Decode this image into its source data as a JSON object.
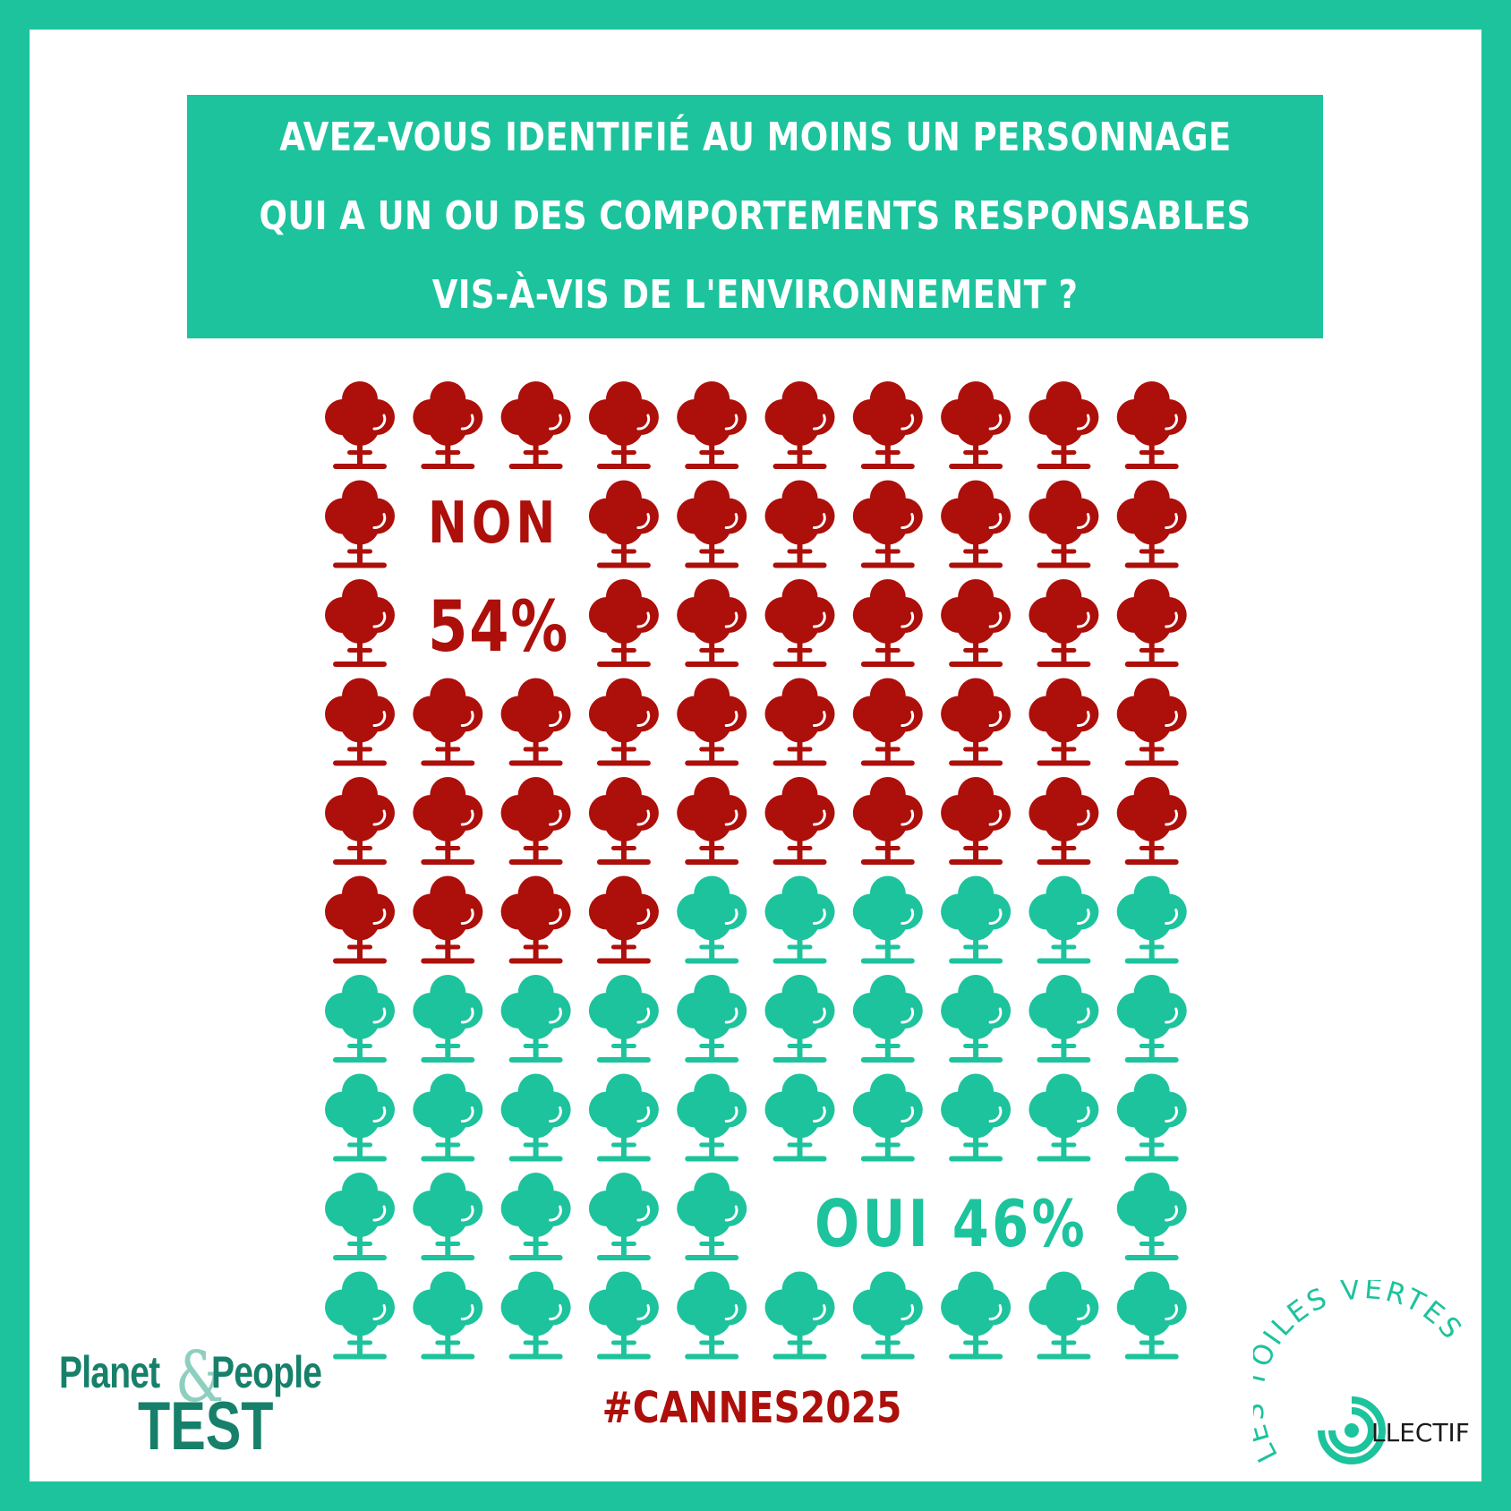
{
  "question": {
    "lines": [
      "AVEZ-VOUS IDENTIFIÉ AU MOINS UN PERSONNAGE",
      "QUI A UN OU DES COMPORTEMENTS RESPONSABLES",
      "VIS-À-VIS DE L'ENVIRONNEMENT ?"
    ]
  },
  "chart_data": {
    "type": "pictogram",
    "icon": "tree-icon",
    "rows": 10,
    "columns": 10,
    "total": 100,
    "series": [
      {
        "name": "NON",
        "value": 54,
        "label": "54%",
        "color": "#ad0f0a"
      },
      {
        "name": "OUI",
        "value": 46,
        "label": "46%",
        "color": "#1dc39c"
      }
    ],
    "title": "AVEZ-VOUS IDENTIFIÉ AU MOINS UN PERSONNAGE QUI A UN OU DES COMPORTEMENTS RESPONSABLES VIS-À-VIS DE L'ENVIRONNEMENT ?"
  },
  "labels": {
    "non": "NON",
    "non_pct": "54%",
    "oui": "OUI 46%"
  },
  "hashtag": "#CANNES2025",
  "logos": {
    "planet_people": {
      "planet": "Planet",
      "amp": "&",
      "people": "People",
      "test": "TEST"
    },
    "toiles_vertes": {
      "arc_text": "LES TOILES VERTES",
      "collectif": "LLECTIF"
    }
  },
  "colors": {
    "brand_green": "#1dc39c",
    "red": "#ad0f0a",
    "dark_green": "#17806a"
  }
}
